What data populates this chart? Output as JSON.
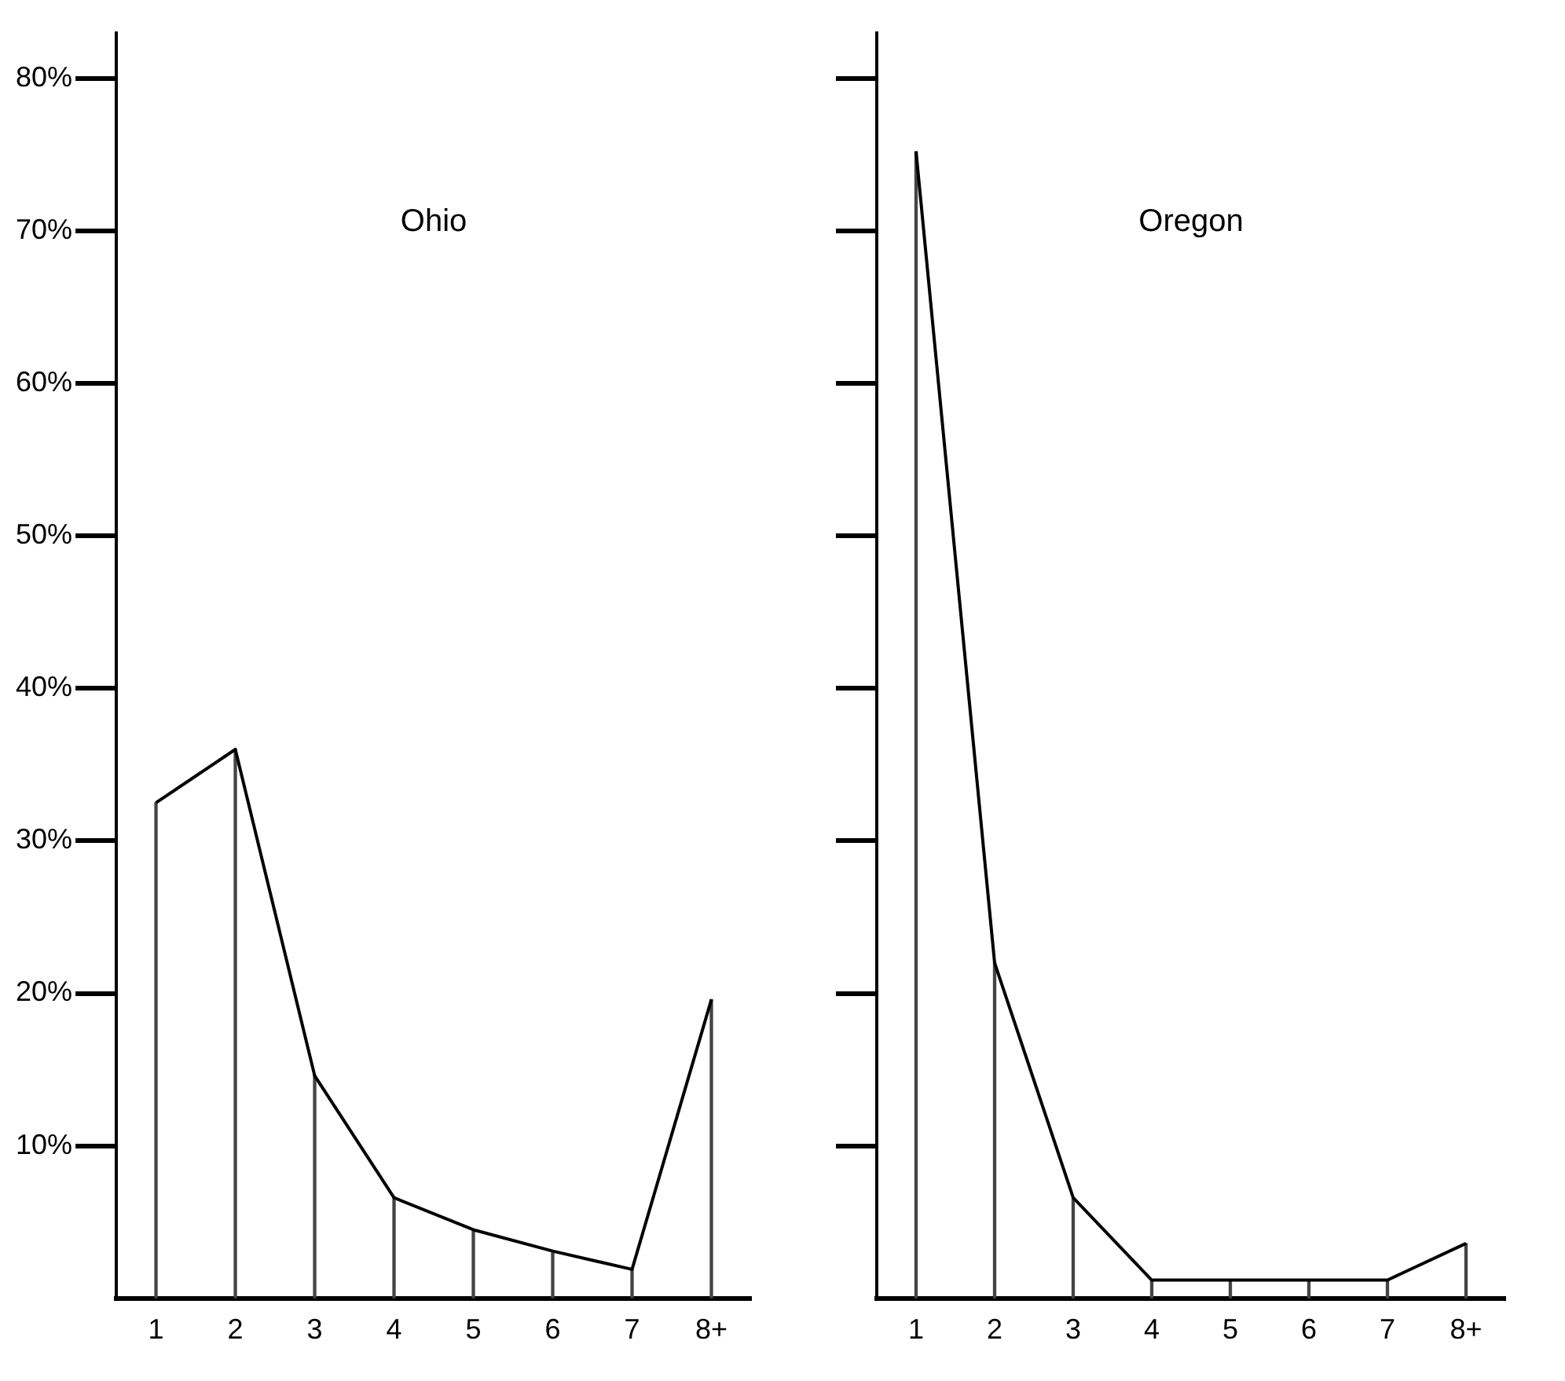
{
  "chart_data": [
    {
      "type": "line",
      "title": "Ohio",
      "categories": [
        "1",
        "2",
        "3",
        "4",
        "5",
        "6",
        "7",
        "8+"
      ],
      "series": [
        {
          "color": "#000000",
          "values": [
            32.5,
            36,
            14.6,
            6.6,
            4.5,
            3.1,
            1.9,
            19.6
          ]
        },
        {
          "type": "bar",
          "color": "#444444",
          "values": [
            32.5,
            36,
            14.6,
            6.6,
            4.5,
            3.1,
            1.9,
            19.6
          ]
        }
      ],
      "ylim": [
        0,
        83
      ],
      "yticks": [
        {
          "value": 10,
          "label": "10%"
        },
        {
          "value": 20,
          "label": "20%"
        },
        {
          "value": 30,
          "label": "30%"
        },
        {
          "value": 40,
          "label": "40%"
        },
        {
          "value": 50,
          "label": "50%"
        },
        {
          "value": 60,
          "label": "60%"
        },
        {
          "value": 70,
          "label": "70%"
        },
        {
          "value": 80,
          "label": "80%"
        }
      ],
      "marker": "none",
      "line_style": "solid",
      "grid": false,
      "legend": false
    },
    {
      "type": "line",
      "title": "Oregon",
      "categories": [
        "1",
        "2",
        "3",
        "4",
        "5",
        "6",
        "7",
        "8+"
      ],
      "series": [
        {
          "color": "#000000",
          "values": [
            75.2,
            22,
            6.6,
            1.2,
            1.2,
            1.2,
            1.2,
            3.6
          ]
        },
        {
          "type": "bar",
          "color": "#444444",
          "values": [
            75.2,
            22,
            6.6,
            1.2,
            1.2,
            1.2,
            1.2,
            3.6
          ]
        }
      ],
      "ylim": [
        0,
        83
      ],
      "yticks": [
        {
          "value": 10,
          "label": null
        },
        {
          "value": 20,
          "label": null
        },
        {
          "value": 30,
          "label": null
        },
        {
          "value": 40,
          "label": null
        },
        {
          "value": 50,
          "label": null
        },
        {
          "value": 60,
          "label": null
        },
        {
          "value": 70,
          "label": null
        },
        {
          "value": 80,
          "label": null
        }
      ],
      "marker": "none",
      "line_style": "solid",
      "grid": false,
      "legend": false,
      "tick_labels": "x"
    }
  ]
}
